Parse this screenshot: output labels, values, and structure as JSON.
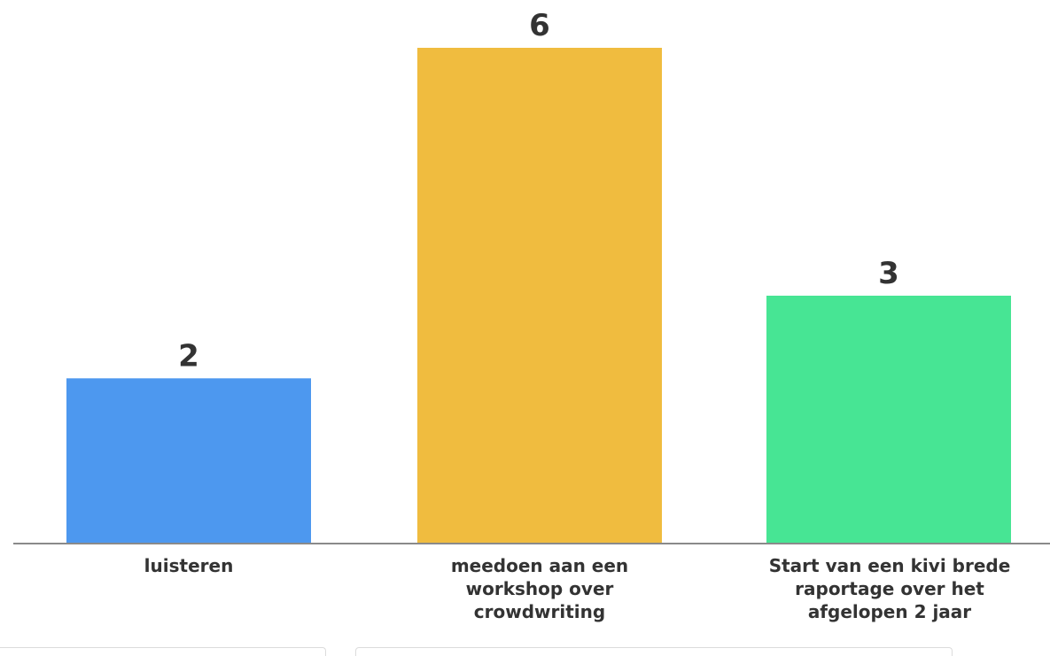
{
  "chart_data": {
    "type": "bar",
    "categories": [
      "luisteren",
      "meedoen aan een workshop over crowdwriting",
      "Start van een kivi brede raportage over het afgelopen 2 jaar"
    ],
    "values": [
      2,
      6,
      3
    ],
    "colors": [
      "#4d98ef",
      "#f0bc3f",
      "#47e594"
    ],
    "ylim": [
      0,
      6
    ],
    "grid": false,
    "legend": "none"
  }
}
